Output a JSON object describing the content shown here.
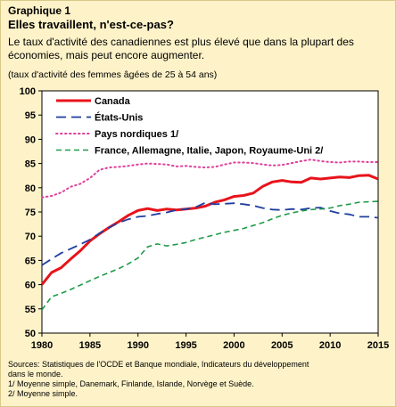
{
  "header": {
    "graphique": "Graphique 1",
    "title": "Elles travaillent, n'est-ce-pas?",
    "subtitle": "Le taux d'activité des canadiennes est plus élevé que dans la plupart des économies, mais peut encore augmenter.",
    "ylabel": "(taux d'activité des femmes âgées de 25 à 54 ans)"
  },
  "notes": {
    "source_line1": "Sources: Statistiques de l'OCDE et Banque mondiale, Indicateurs du développement",
    "source_line2": "dans le monde.",
    "note1": "1/ Moyenne simple, Danemark, Finlande, Islande, Norvège et Suède.",
    "note2": "2/ Moyenne simple."
  },
  "chart_data": {
    "type": "line",
    "title": "Elles travaillent, n'est-ce-pas?",
    "xlabel": "",
    "ylabel": "(taux d'activité des femmes âgées de 25 à 54 ans)",
    "xlim": [
      1980,
      2015
    ],
    "ylim": [
      50,
      100
    ],
    "xticks": [
      1980,
      1985,
      1990,
      1995,
      2000,
      2005,
      2010,
      2015
    ],
    "yticks": [
      50,
      55,
      60,
      65,
      70,
      75,
      80,
      85,
      90,
      95,
      100
    ],
    "grid": false,
    "legend_position": "top-left",
    "x": [
      1980,
      1981,
      1982,
      1983,
      1984,
      1985,
      1986,
      1987,
      1988,
      1989,
      1990,
      1991,
      1992,
      1993,
      1994,
      1995,
      1996,
      1997,
      1998,
      1999,
      2000,
      2001,
      2002,
      2003,
      2004,
      2005,
      2006,
      2007,
      2008,
      2009,
      2010,
      2011,
      2012,
      2013,
      2014,
      2015
    ],
    "series": [
      {
        "name": "Canada",
        "color": "#e8131b",
        "dash": "solid",
        "values": [
          60.0,
          62.5,
          63.5,
          65.3,
          67.0,
          69.0,
          70.5,
          71.8,
          73.0,
          74.3,
          75.3,
          75.7,
          75.3,
          75.6,
          75.4,
          75.6,
          75.8,
          76.2,
          77.0,
          77.5,
          78.2,
          78.4,
          78.9,
          80.3,
          81.2,
          81.5,
          81.2,
          81.1,
          82.0,
          81.8,
          82.0,
          82.2,
          82.1,
          82.5,
          82.6,
          81.8
        ]
      },
      {
        "name": "États-Unis",
        "color": "#1f3f9f",
        "dash": "longdash",
        "values": [
          64.0,
          65.3,
          66.5,
          67.4,
          68.3,
          69.3,
          70.6,
          71.8,
          72.8,
          73.5,
          74.0,
          74.2,
          74.6,
          74.9,
          75.4,
          75.6,
          76.0,
          76.9,
          76.6,
          76.7,
          76.8,
          76.6,
          76.3,
          75.8,
          75.5,
          75.4,
          75.6,
          75.5,
          75.8,
          75.9,
          75.2,
          74.7,
          74.5,
          74.0,
          74.0,
          73.8
        ]
      },
      {
        "name": "Pays nordiques  1/",
        "color": "#e0409a",
        "dash": "dotted",
        "values": [
          78.0,
          78.3,
          79.0,
          80.2,
          80.8,
          82.0,
          83.7,
          84.2,
          84.3,
          84.5,
          84.8,
          85.0,
          84.9,
          84.8,
          84.4,
          84.5,
          84.3,
          84.2,
          84.3,
          84.8,
          85.2,
          85.2,
          85.1,
          84.8,
          84.6,
          84.7,
          85.1,
          85.5,
          85.8,
          85.5,
          85.3,
          85.2,
          85.4,
          85.4,
          85.3,
          85.3
        ]
      },
      {
        "name": "France,  Allemagne,  Italie,  Japon,  Royaume-Uni  2/",
        "color": "#1f9a4a",
        "dash": "dashed",
        "values": [
          54.8,
          57.5,
          58.2,
          59.0,
          59.9,
          60.8,
          61.7,
          62.5,
          63.3,
          64.3,
          65.5,
          67.8,
          68.4,
          68.0,
          68.3,
          68.7,
          69.3,
          69.8,
          70.3,
          70.8,
          71.2,
          71.6,
          72.2,
          72.8,
          73.6,
          74.3,
          74.8,
          75.2,
          75.5,
          75.6,
          75.8,
          76.3,
          76.6,
          77.0,
          77.1,
          77.2
        ]
      }
    ]
  }
}
